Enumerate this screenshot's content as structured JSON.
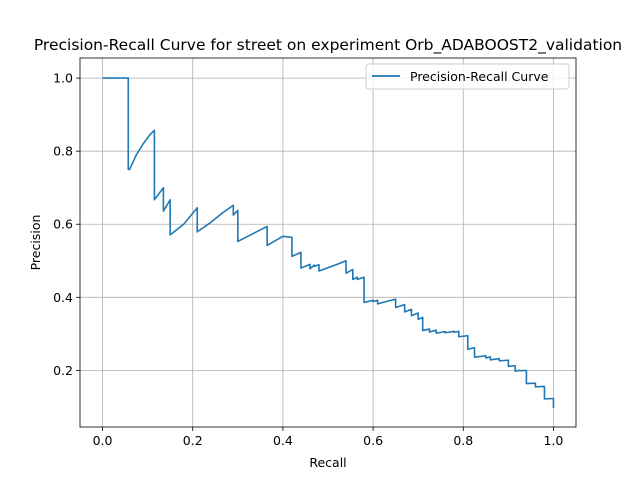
{
  "chart_data": {
    "type": "line",
    "title": "Precision-Recall Curve for street on experiment Orb_ADABOOST2_validation",
    "xlabel": "Recall",
    "ylabel": "Precision",
    "xlim": [
      -0.05,
      1.05
    ],
    "ylim": [
      0.045,
      1.055
    ],
    "xticks": [
      "0.0",
      "0.2",
      "0.4",
      "0.6",
      "0.8",
      "1.0"
    ],
    "xtick_values": [
      0.0,
      0.2,
      0.4,
      0.6,
      0.8,
      1.0
    ],
    "yticks": [
      "0.2",
      "0.4",
      "0.6",
      "0.8",
      "1.0"
    ],
    "ytick_values": [
      0.2,
      0.4,
      0.6,
      0.8,
      1.0
    ],
    "grid": true,
    "legend_position": "top-right",
    "line_color": "#1f77b4",
    "series": [
      {
        "name": "Precision-Recall Curve",
        "x": [
          0.0,
          0.057,
          0.057,
          0.06,
          0.075,
          0.09,
          0.105,
          0.115,
          0.115,
          0.135,
          0.135,
          0.15,
          0.15,
          0.18,
          0.21,
          0.21,
          0.24,
          0.265,
          0.29,
          0.29,
          0.3,
          0.3,
          0.365,
          0.365,
          0.4,
          0.42,
          0.42,
          0.44,
          0.44,
          0.46,
          0.46,
          0.47,
          0.47,
          0.48,
          0.48,
          0.52,
          0.54,
          0.54,
          0.555,
          0.555,
          0.565,
          0.565,
          0.58,
          0.58,
          0.6,
          0.6,
          0.61,
          0.61,
          0.65,
          0.65,
          0.67,
          0.67,
          0.685,
          0.685,
          0.7,
          0.7,
          0.71,
          0.71,
          0.725,
          0.725,
          0.74,
          0.74,
          0.76,
          0.76,
          0.78,
          0.78,
          0.79,
          0.79,
          0.81,
          0.81,
          0.825,
          0.825,
          0.85,
          0.85,
          0.86,
          0.86,
          0.88,
          0.88,
          0.9,
          0.9,
          0.915,
          0.915,
          0.925,
          0.925,
          0.94,
          0.94,
          0.96,
          0.96,
          0.98,
          0.98,
          1.0,
          1.0
        ],
        "y": [
          1.0,
          1.0,
          0.75,
          0.75,
          0.79,
          0.82,
          0.845,
          0.857,
          0.667,
          0.7,
          0.636,
          0.667,
          0.571,
          0.6,
          0.645,
          0.579,
          0.605,
          0.63,
          0.652,
          0.625,
          0.638,
          0.553,
          0.594,
          0.542,
          0.567,
          0.564,
          0.512,
          0.523,
          0.48,
          0.49,
          0.478,
          0.488,
          0.485,
          0.489,
          0.472,
          0.49,
          0.5,
          0.466,
          0.476,
          0.449,
          0.455,
          0.449,
          0.455,
          0.386,
          0.392,
          0.388,
          0.392,
          0.382,
          0.395,
          0.372,
          0.38,
          0.36,
          0.367,
          0.35,
          0.357,
          0.34,
          0.345,
          0.309,
          0.313,
          0.305,
          0.31,
          0.302,
          0.306,
          0.303,
          0.307,
          0.304,
          0.307,
          0.292,
          0.295,
          0.258,
          0.262,
          0.236,
          0.24,
          0.234,
          0.237,
          0.229,
          0.232,
          0.226,
          0.228,
          0.211,
          0.213,
          0.198,
          0.2,
          0.199,
          0.2,
          0.164,
          0.165,
          0.155,
          0.156,
          0.122,
          0.123,
          0.097
        ]
      }
    ]
  }
}
